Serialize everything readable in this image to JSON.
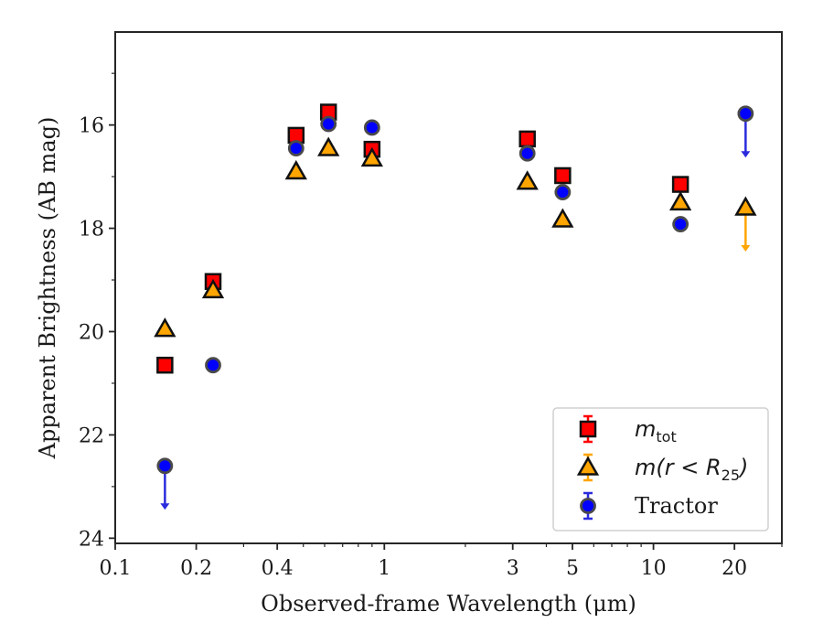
{
  "chart_data": {
    "type": "scatter",
    "xlabel": "Observed-frame Wavelength (μm)",
    "ylabel": "Apparent Brightness (AB mag)",
    "xscale": "log",
    "xlim": [
      0.1,
      30
    ],
    "ylim": [
      24.1,
      14.2
    ],
    "y_inverted": true,
    "x_ticks": [
      {
        "value": 0.1,
        "label": "0.1"
      },
      {
        "value": 0.2,
        "label": "0.2"
      },
      {
        "value": 0.4,
        "label": "0.4"
      },
      {
        "value": 1,
        "label": "1"
      },
      {
        "value": 3,
        "label": "3"
      },
      {
        "value": 5,
        "label": "5"
      },
      {
        "value": 10,
        "label": "10"
      },
      {
        "value": 20,
        "label": "20"
      }
    ],
    "x_minor_ticks": [
      0.3,
      0.5,
      0.6,
      0.7,
      0.8,
      0.9,
      2,
      4,
      6,
      7,
      8,
      9,
      30
    ],
    "y_ticks": [
      {
        "value": 16,
        "label": "16"
      },
      {
        "value": 18,
        "label": "18"
      },
      {
        "value": 20,
        "label": "20"
      },
      {
        "value": 22,
        "label": "22"
      },
      {
        "value": 24,
        "label": "24"
      }
    ],
    "y_minor_ticks": [
      15,
      17,
      19,
      21,
      23
    ],
    "grid": false,
    "legend_position": "lower-right",
    "series": [
      {
        "name": "m_tot",
        "legend_base": "m",
        "legend_sub": "tot",
        "legend_paren": "",
        "marker": "square",
        "color": "#ff0000",
        "errcolor": "#ff0000",
        "x": [
          0.153,
          0.231,
          0.47,
          0.62,
          0.9,
          3.4,
          4.6,
          12.6
        ],
        "y": [
          20.65,
          19.03,
          16.2,
          15.75,
          16.47,
          16.27,
          16.98,
          17.15
        ],
        "upper_limit": [
          false,
          false,
          false,
          false,
          false,
          false,
          false,
          false
        ]
      },
      {
        "name": "m(r < R25)",
        "legend_base": "m",
        "legend_sub": "25",
        "legend_paren": "(r < R",
        "marker": "triangle",
        "color": "#ffa500",
        "errcolor": "#ffa500",
        "x": [
          0.153,
          0.231,
          0.47,
          0.62,
          0.9,
          3.4,
          4.6,
          12.6,
          22
        ],
        "y": [
          19.95,
          19.2,
          16.9,
          16.45,
          16.65,
          17.1,
          17.83,
          17.5,
          17.6
        ],
        "upper_limit": [
          false,
          false,
          false,
          false,
          false,
          false,
          false,
          false,
          true
        ]
      },
      {
        "name": "Tractor",
        "legend_base": "Tractor",
        "legend_sub": "",
        "legend_paren": "",
        "marker": "circle",
        "color": "#0000ff",
        "errcolor": "#2b2bdd",
        "x": [
          0.153,
          0.231,
          0.47,
          0.62,
          0.9,
          3.4,
          4.6,
          12.6,
          22
        ],
        "y": [
          22.6,
          20.65,
          16.45,
          15.98,
          16.05,
          16.55,
          17.3,
          17.92,
          15.78
        ],
        "upper_limit": [
          true,
          false,
          false,
          false,
          false,
          false,
          false,
          false,
          true
        ]
      }
    ]
  }
}
